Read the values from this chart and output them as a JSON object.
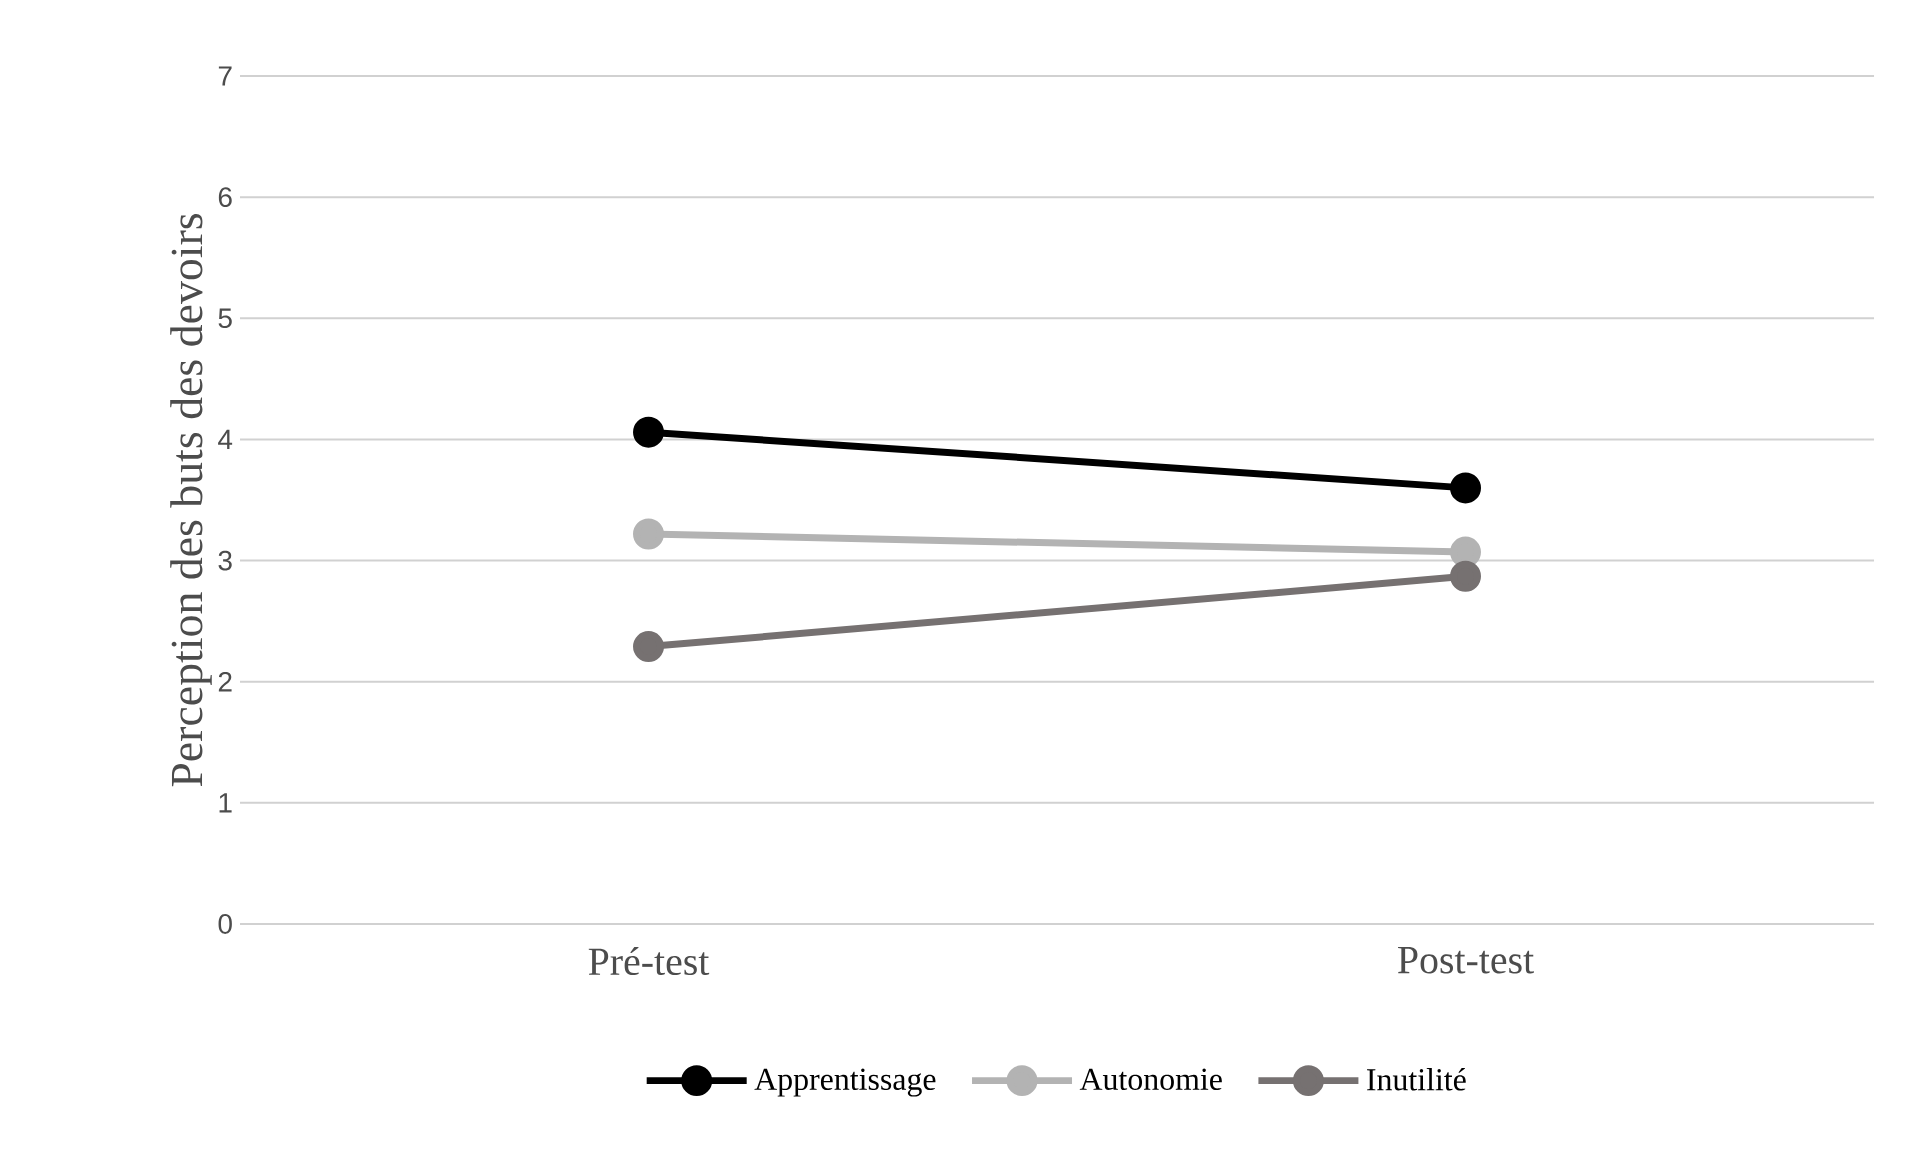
{
  "chart_data": {
    "type": "line",
    "ylabel": "Perception des buts des devoirs",
    "categories": [
      "Pré-test",
      "Post-test"
    ],
    "series": [
      {
        "name": "Apprentissage",
        "color": "#000000",
        "values": [
          4.06,
          3.6
        ]
      },
      {
        "name": "Autonomie",
        "color": "#b3b3b3",
        "values": [
          3.22,
          3.07
        ]
      },
      {
        "name": "Inutilité",
        "color": "#767171",
        "values": [
          2.29,
          2.87
        ]
      }
    ],
    "ylim": [
      0,
      7
    ],
    "yticks": [
      0,
      1,
      2,
      3,
      4,
      5,
      6,
      7
    ],
    "grid": "y",
    "legend": "bottom",
    "marker": "circle",
    "line_style": "solid"
  }
}
